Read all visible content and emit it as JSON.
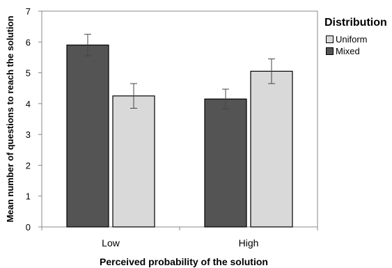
{
  "chart_data": {
    "type": "bar",
    "title": "",
    "xlabel": "Perceived probability of the solution",
    "ylabel": "Mean number of questions to reach the solution",
    "categories": [
      "Low",
      "High"
    ],
    "ylim": [
      0,
      7
    ],
    "yticks": [
      "0",
      "1",
      "2",
      "3",
      "4",
      "5",
      "6",
      "7"
    ],
    "grid": false,
    "legend": {
      "title": "Distribution",
      "position": "right"
    },
    "series": [
      {
        "name": "Mixed",
        "color": "#545454",
        "values": [
          5.9,
          4.15
        ],
        "error": [
          0.35,
          0.32
        ]
      },
      {
        "name": "Uniform",
        "color": "#d9d9d9",
        "values": [
          4.25,
          5.05
        ],
        "error": [
          0.4,
          0.4
        ]
      }
    ]
  },
  "legend_items": [
    {
      "label": "Uniform",
      "color": "#d9d9d9"
    },
    {
      "label": "Mixed",
      "color": "#545454"
    }
  ]
}
